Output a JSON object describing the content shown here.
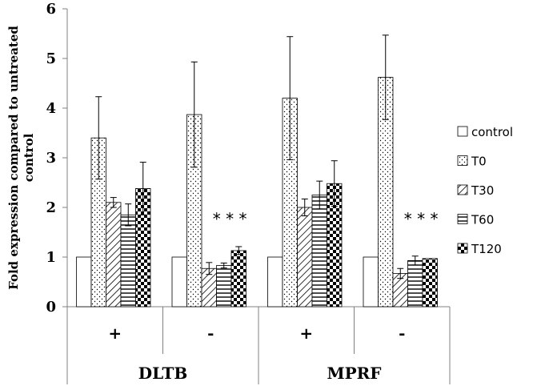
{
  "chart_data": {
    "type": "bar",
    "ylabel": "Fold expression compared to untreated control",
    "ylim": [
      0,
      6
    ],
    "yticks": [
      0,
      1,
      2,
      3,
      4,
      5,
      6
    ],
    "groups": [
      {
        "name": "DLTB",
        "subcategories": [
          "+",
          "-"
        ]
      },
      {
        "name": "MPRF",
        "subcategories": [
          "+",
          "-"
        ]
      }
    ],
    "categories": [
      "+",
      "-",
      "+",
      "-"
    ],
    "series": [
      {
        "name": "control",
        "values": [
          1,
          1,
          1,
          1
        ],
        "errors": [
          0,
          0,
          0,
          0
        ]
      },
      {
        "name": "T0",
        "values": [
          3.4,
          3.87,
          4.2,
          4.62
        ],
        "errors": [
          0.83,
          1.06,
          1.24,
          0.85
        ]
      },
      {
        "name": "T30",
        "values": [
          2.1,
          0.77,
          2.0,
          0.67
        ],
        "errors": [
          0.1,
          0.12,
          0.17,
          0.1
        ]
      },
      {
        "name": "T60",
        "values": [
          1.85,
          0.83,
          2.25,
          0.93
        ],
        "errors": [
          0.22,
          0.05,
          0.28,
          0.09
        ]
      },
      {
        "name": "T120",
        "values": [
          2.38,
          1.13,
          2.48,
          0.97
        ],
        "errors": [
          0.53,
          0.08,
          0.46,
          0
        ]
      }
    ],
    "annotations": [
      {
        "category_index": 1,
        "text": "* * *"
      },
      {
        "category_index": 3,
        "text": "* * *"
      }
    ],
    "legend_position": "right"
  }
}
